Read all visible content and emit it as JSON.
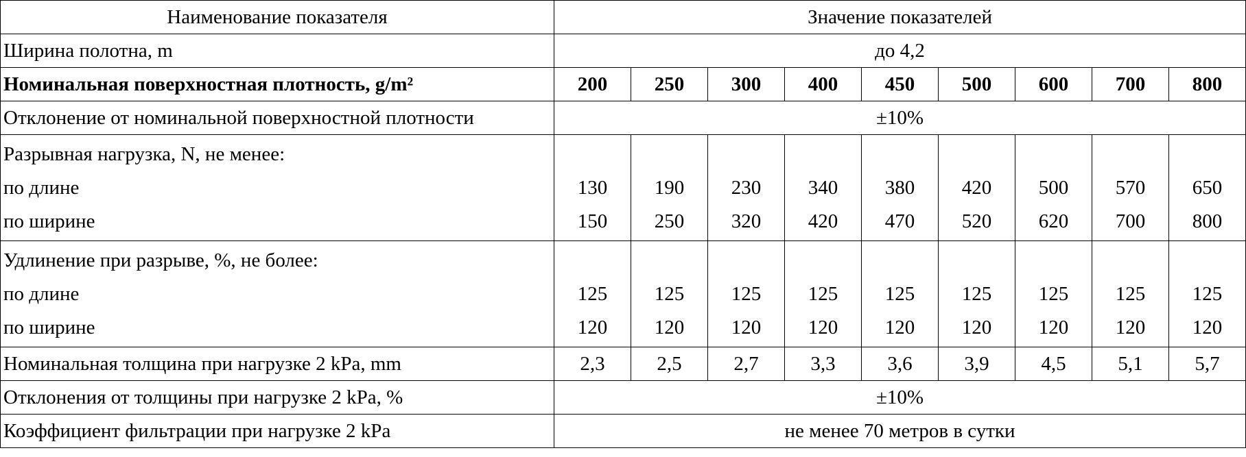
{
  "table": {
    "header": [
      "Наименование показателя",
      "Значение показателей"
    ],
    "rows": [
      {
        "label": "Ширина полотна, m",
        "value": "до 4,2"
      },
      {
        "label": "Номинальная поверхностная плотность, g/m²",
        "values": [
          "200",
          "250",
          "300",
          "400",
          "450",
          "500",
          "600",
          "700",
          "800"
        ]
      },
      {
        "label": "Отклонение от номинальной поверхностной плотности",
        "value": "±10%"
      },
      {
        "label": "Разрывная нагрузка, N, не менее:",
        "sub": [
          {
            "label": "по длине",
            "values": [
              "130",
              "190",
              "230",
              "340",
              "380",
              "420",
              "500",
              "570",
              "650"
            ]
          },
          {
            "label": "по ширине",
            "values": [
              "150",
              "250",
              "320",
              "420",
              "470",
              "520",
              "620",
              "700",
              "800"
            ]
          }
        ]
      },
      {
        "label": "Удлинение при разрыве, %, не более:",
        "sub": [
          {
            "label": "по длине",
            "values": [
              "125",
              "125",
              "125",
              "125",
              "125",
              "125",
              "125",
              "125",
              "125"
            ]
          },
          {
            "label": "по ширине",
            "values": [
              "120",
              "120",
              "120",
              "120",
              "120",
              "120",
              "120",
              "120",
              "120"
            ]
          }
        ]
      },
      {
        "label": "Номинальная толщина при нагрузке 2 kPa, mm",
        "values": [
          "2,3",
          "2,5",
          "2,7",
          "3,3",
          "3,6",
          "3,9",
          "4,5",
          "5,1",
          "5,7"
        ]
      },
      {
        "label": "Отклонения от толщины при нагрузке 2 kPa, %",
        "value": "±10%"
      },
      {
        "label": "Коэффициент фильтрации при нагрузке 2 kPa",
        "value": "не менее 70 метров в сутки"
      }
    ]
  }
}
